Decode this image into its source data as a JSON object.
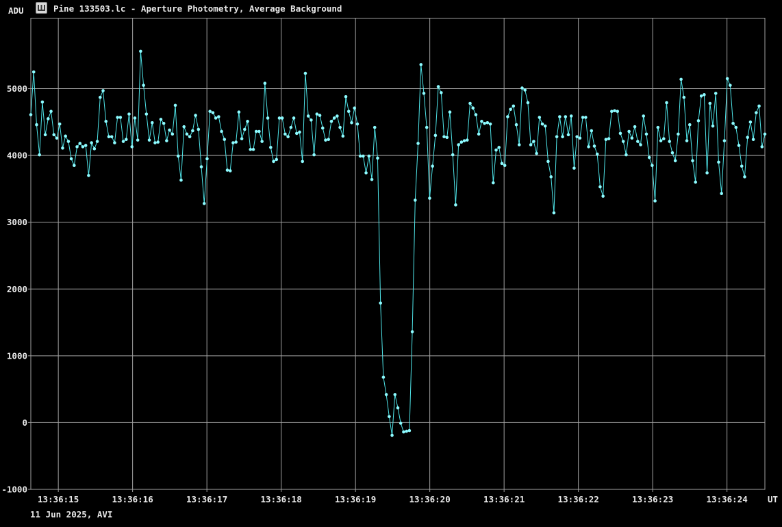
{
  "header": {
    "y_unit": "ADU",
    "title": "Pine 133503.lc - Aperture Photometry, Average Background",
    "icon": "lightcurve-app-icon"
  },
  "footer": {
    "date_source": "11 Jun 2025, AVI"
  },
  "colors": {
    "background": "#000000",
    "grid": "#a3a3a3",
    "text": "#e9e9e9",
    "curve": "#4fe6ea",
    "marker": "#8dfbff",
    "icon_bg": "#d9d9d9",
    "icon_glyph": "#3a3a3a"
  },
  "chart_data": {
    "type": "line",
    "title": "Pine 133503.lc - Aperture Photometry, Average Background",
    "xlabel": "UT",
    "ylabel": "ADU",
    "grid": true,
    "legend": "none",
    "x_tick_labels": [
      "13:36:15",
      "13:36:16",
      "13:36:17",
      "13:36:18",
      "13:36:19",
      "13:36:20",
      "13:36:21",
      "13:36:22",
      "13:36:23",
      "13:36:24"
    ],
    "x_tick_s": [
      15,
      16,
      17,
      18,
      19,
      20,
      21,
      22,
      23,
      24
    ],
    "x_range_s": [
      14.63,
      24.51
    ],
    "y_ticks": [
      5000,
      4000,
      3000,
      2000,
      1000,
      0,
      -1000
    ],
    "ylim": [
      -1000,
      6056
    ],
    "series": [
      {
        "name": "aperture-photometry-lightcurve",
        "marker": "dot",
        "values": [
          4610,
          5250,
          4460,
          4010,
          4800,
          4310,
          4550,
          4660,
          4310,
          4260,
          4470,
          4110,
          4290,
          4210,
          3950,
          3850,
          4130,
          4180,
          4130,
          4150,
          3700,
          4190,
          4100,
          4210,
          4870,
          4970,
          4510,
          4280,
          4280,
          4190,
          4570,
          4570,
          4210,
          4240,
          4620,
          4130,
          4560,
          4230,
          5560,
          5050,
          4620,
          4230,
          4490,
          4190,
          4200,
          4540,
          4480,
          4220,
          4380,
          4320,
          4750,
          3990,
          3630,
          4430,
          4320,
          4280,
          4370,
          4600,
          4390,
          3830,
          3280,
          3950,
          4660,
          4640,
          4560,
          4580,
          4360,
          4240,
          3780,
          3770,
          4190,
          4200,
          4650,
          4250,
          4390,
          4510,
          4090,
          4090,
          4360,
          4360,
          4210,
          5080,
          4560,
          4120,
          3910,
          3940,
          4560,
          4560,
          4320,
          4280,
          4420,
          4560,
          4330,
          4350,
          3910,
          5230,
          4590,
          4530,
          4010,
          4620,
          4600,
          4410,
          4230,
          4240,
          4510,
          4560,
          4590,
          4420,
          4290,
          4880,
          4660,
          4490,
          4710,
          4470,
          3990,
          3990,
          3740,
          3990,
          3640,
          4420,
          3960,
          1790,
          680,
          420,
          90,
          -190,
          420,
          220,
          -10,
          -140,
          -130,
          -120,
          1360,
          3330,
          4180,
          5360,
          4930,
          4420,
          3360,
          3840,
          4300,
          5030,
          4940,
          4280,
          4270,
          4650,
          4010,
          3260,
          4160,
          4200,
          4220,
          4230,
          4780,
          4710,
          4610,
          4320,
          4510,
          4480,
          4490,
          4470,
          3590,
          4080,
          4120,
          3880,
          3850,
          4580,
          4690,
          4740,
          4460,
          4160,
          5010,
          4980,
          4790,
          4160,
          4210,
          4030,
          4570,
          4470,
          4440,
          3910,
          3680,
          3140,
          4280,
          4580,
          4280,
          4580,
          4310,
          4590,
          3810,
          4280,
          4260,
          4570,
          4570,
          4130,
          4370,
          4140,
          4020,
          3530,
          3390,
          4240,
          4250,
          4660,
          4670,
          4660,
          4330,
          4210,
          4010,
          4360,
          4260,
          4430,
          4210,
          4160,
          4590,
          4320,
          3970,
          3850,
          3320,
          4420,
          4220,
          4250,
          4790,
          4210,
          4040,
          3920,
          4320,
          5140,
          4870,
          4220,
          4460,
          3920,
          3600,
          4520,
          4890,
          4910,
          3740,
          4780,
          4440,
          4930,
          3900,
          3430,
          4220,
          5150,
          5050,
          4480,
          4420,
          4150,
          3840,
          3680,
          4270,
          4500,
          4240,
          4640,
          4740,
          4130,
          4320
        ]
      }
    ]
  }
}
